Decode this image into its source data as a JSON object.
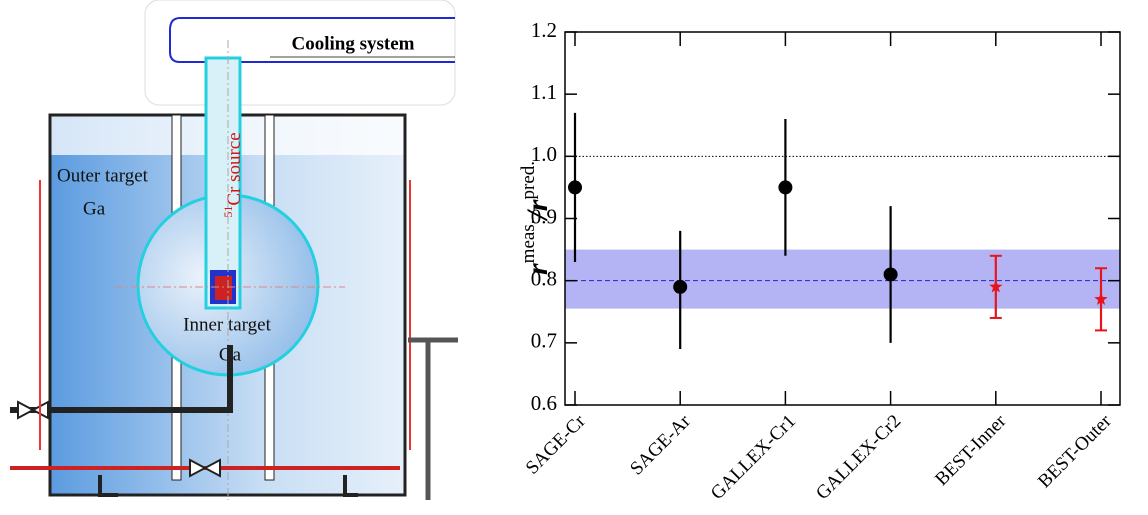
{
  "diagram": {
    "cooling": "Cooling system",
    "outer": "Outer target",
    "outer_ga": "Ga",
    "source_sup": "51",
    "source": "Cr source",
    "inner": "Inner target",
    "inner_ga": "Ga"
  },
  "chart_data": {
    "type": "errorbar",
    "categories": [
      "SAGE-Cr",
      "SAGE-Ar",
      "GALLEX-Cr1",
      "GALLEX-Cr2",
      "BEST-Inner",
      "BEST-Outer"
    ],
    "values": [
      0.95,
      0.79,
      0.95,
      0.81,
      0.79,
      0.77
    ],
    "error_plus": [
      0.12,
      0.09,
      0.11,
      0.11,
      0.05,
      0.05
    ],
    "error_minus": [
      0.12,
      0.1,
      0.11,
      0.11,
      0.05,
      0.05
    ],
    "colors": [
      "#000000",
      "#000000",
      "#000000",
      "#000000",
      "#e8141c",
      "#e8141c"
    ],
    "markers": [
      "circle",
      "circle",
      "circle",
      "circle",
      "star",
      "star"
    ],
    "ylabel": [
      "r",
      "meas.",
      "/",
      "r",
      "pred."
    ],
    "ylim": [
      0.6,
      1.2
    ],
    "yticks": [
      0.6,
      0.7,
      0.8,
      0.9,
      {
        "value": 1,
        "label": "1.0"
      },
      1.1,
      1.2
    ],
    "reference": 1,
    "mean": 0.8,
    "band": [
      0.755,
      0.85
    ],
    "band_color": "#b4b4f5",
    "mean_color": "#2222cc"
  }
}
